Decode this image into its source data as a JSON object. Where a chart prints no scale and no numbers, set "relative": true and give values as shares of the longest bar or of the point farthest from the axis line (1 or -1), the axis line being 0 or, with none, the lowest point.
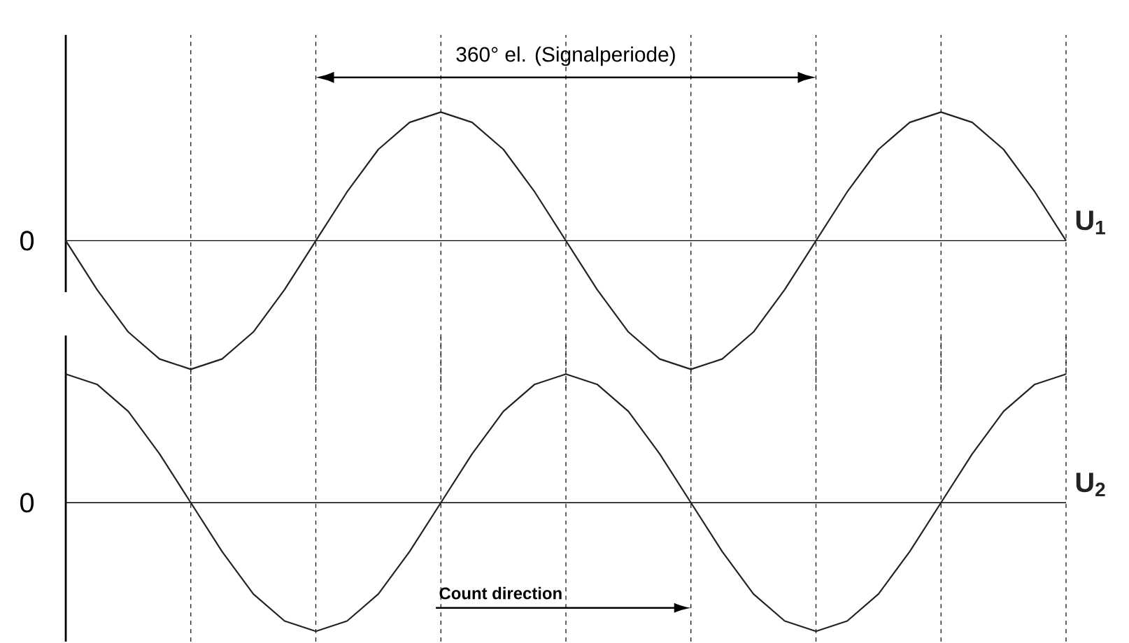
{
  "chart_data": [
    {
      "type": "line",
      "relative": true,
      "categories": [
        null,
        null,
        null,
        null,
        null,
        null,
        null,
        null,
        null,
        null,
        null,
        null,
        null,
        null,
        null,
        null,
        null,
        null,
        null,
        null,
        null,
        null,
        null,
        null,
        null,
        null,
        null,
        null,
        null,
        null,
        null,
        null,
        null
      ],
      "series": [
        {
          "name": "U$_{1}$",
          "color": "#222222",
          "values": [
            0,
            -0.38,
            -0.71,
            -0.92,
            -1,
            -0.92,
            -0.71,
            -0.38,
            0,
            0.38,
            0.71,
            0.92,
            1,
            0.92,
            0.71,
            0.38,
            0,
            -0.38,
            -0.71,
            -0.92,
            -1,
            -0.92,
            -0.71,
            -0.38,
            0,
            0.38,
            0.71,
            0.92,
            1,
            0.92,
            0.71,
            0.38,
            0
          ]
        }
      ],
      "grid": "x",
      "annotations": [
        "0",
        "360° el. (Signalperiode)"
      ]
    },
    {
      "type": "line",
      "relative": true,
      "categories": [
        null,
        null,
        null,
        null,
        null,
        null,
        null,
        null,
        null,
        null,
        null,
        null,
        null,
        null,
        null,
        null,
        null,
        null,
        null,
        null,
        null,
        null,
        null,
        null,
        null,
        null,
        null,
        null,
        null,
        null,
        null,
        null,
        null
      ],
      "series": [
        {
          "name": "U$_{2}$",
          "color": "#222222",
          "values": [
            1,
            0.92,
            0.71,
            0.38,
            0,
            -0.38,
            -0.71,
            -0.92,
            -1,
            -0.92,
            -0.71,
            -0.38,
            0,
            0.38,
            0.71,
            0.92,
            1,
            0.92,
            0.71,
            0.38,
            0,
            -0.38,
            -0.71,
            -0.92,
            -1,
            -0.92,
            -0.71,
            -0.38,
            0,
            0.38,
            0.71,
            0.92,
            1
          ]
        }
      ],
      "grid": "x",
      "annotations": [
        "0",
        "Count direction"
      ]
    }
  ]
}
